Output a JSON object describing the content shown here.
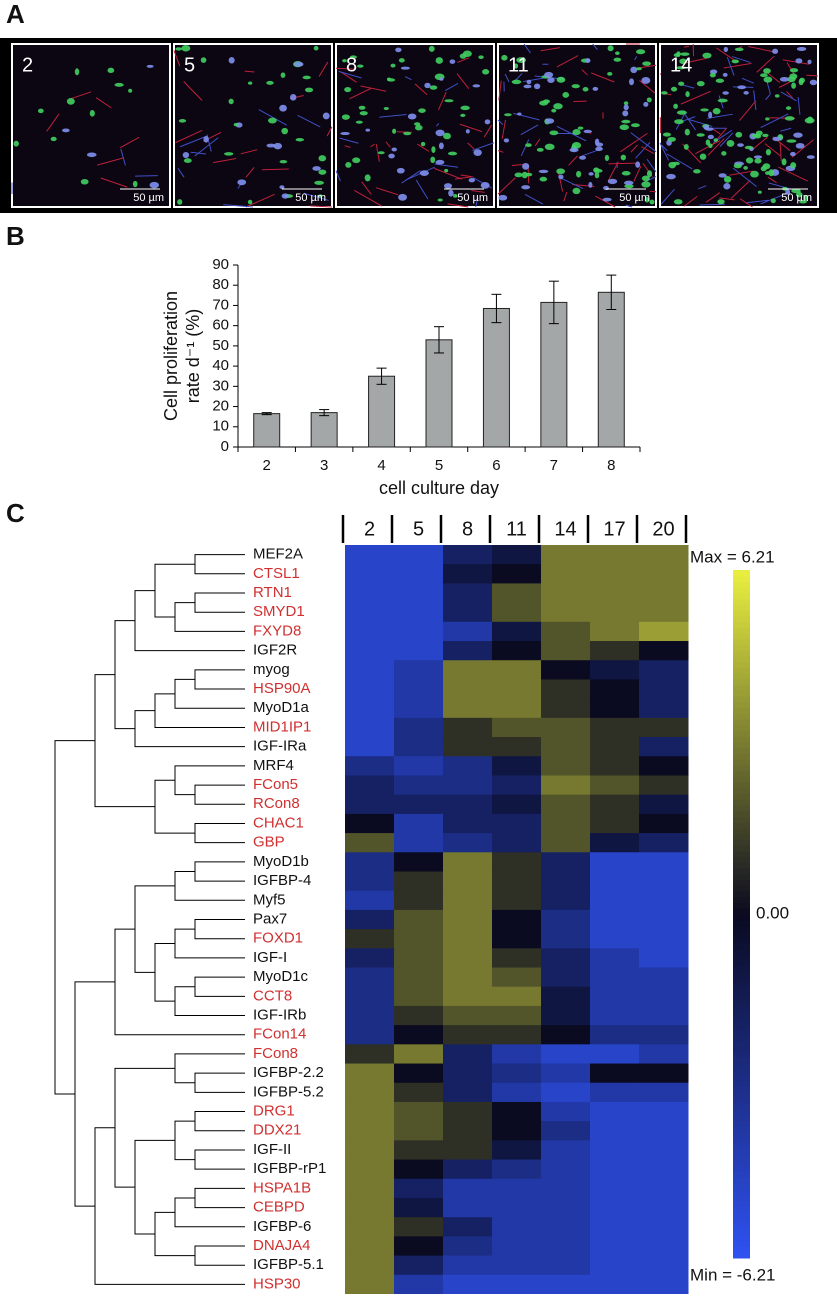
{
  "panels": [
    "A",
    "B",
    "C"
  ],
  "panel_a": {
    "days": [
      "2",
      "5",
      "8",
      "11",
      "14"
    ],
    "scale_bar": "50 µm"
  },
  "chart_data": [
    {
      "type": "bar",
      "categories": [
        "2",
        "3",
        "4",
        "5",
        "6",
        "7",
        "8"
      ],
      "values": [
        16.5,
        17,
        35,
        53,
        68.5,
        71.5,
        76.5
      ],
      "errors": [
        0.5,
        1.5,
        4,
        6.5,
        7,
        10.5,
        8.5
      ],
      "ylabel": [
        "Cell proliferation",
        "rate d⁻¹ (%)"
      ],
      "xlabel": "cell culture day",
      "ylim": [
        0,
        90
      ],
      "yticks": [
        0,
        10,
        20,
        30,
        40,
        50,
        60,
        70,
        80,
        90
      ],
      "color": "#a3a7a7"
    },
    {
      "type": "heatmap",
      "columns": [
        "2",
        "5",
        "8",
        "11",
        "14",
        "17",
        "20"
      ],
      "rows": [
        "MEF2A",
        "CTSL1",
        "RTN1",
        "SMYD1",
        "FXYD8",
        "IGF2R",
        "myog",
        "HSP90A",
        "MyoD1a",
        "MID1IP1",
        "IGF-IRa",
        "MRF4",
        "FCon5",
        "RCon8",
        "CHAC1",
        "GBP",
        "MyoD1b",
        "IGFBP-4",
        "Myf5",
        "Pax7",
        "FOXD1",
        "IGF-I",
        "MyoD1c",
        "CCT8",
        "IGF-IRb",
        "FCon14",
        "FCon8",
        "IGFBP-2.2",
        "IGFBP-5.2",
        "DRG1",
        "DDX21",
        "IGF-II",
        "IGFBP-rP1",
        "HSPA1B",
        "CEBPD",
        "IGFBP-6",
        "DNAJA4",
        "IGFBP-5.1",
        "HSP30"
      ],
      "row_colors": [
        "#111",
        "#d03030",
        "#d03030",
        "#d03030",
        "#d03030",
        "#111",
        "#111",
        "#d03030",
        "#111",
        "#d03030",
        "#111",
        "#111",
        "#d03030",
        "#d03030",
        "#d03030",
        "#d03030",
        "#111",
        "#111",
        "#111",
        "#111",
        "#d03030",
        "#111",
        "#111",
        "#d03030",
        "#111",
        "#d03030",
        "#d03030",
        "#111",
        "#111",
        "#d03030",
        "#d03030",
        "#111",
        "#111",
        "#d03030",
        "#d03030",
        "#111",
        "#d03030",
        "#111",
        "#d03030"
      ],
      "values": [
        [
          -5,
          -5,
          -2,
          -1,
          3,
          3,
          3
        ],
        [
          -5,
          -5,
          -1,
          0,
          3,
          3,
          3
        ],
        [
          -5,
          -5,
          -2,
          2,
          3,
          3,
          3
        ],
        [
          -5,
          -5,
          -2,
          2,
          3,
          3,
          3
        ],
        [
          -5,
          -5,
          -4,
          -1,
          2,
          3,
          4
        ],
        [
          -5,
          -5,
          -2,
          0,
          2,
          1,
          0
        ],
        [
          -5,
          -4,
          3,
          3,
          0,
          -1,
          -2
        ],
        [
          -5,
          -4,
          3,
          3,
          1,
          0,
          -2
        ],
        [
          -5,
          -4,
          3,
          3,
          1,
          0,
          -2
        ],
        [
          -5,
          -3,
          1,
          2,
          2,
          1,
          1
        ],
        [
          -5,
          -3,
          1,
          1,
          2,
          1,
          -2
        ],
        [
          -3,
          -4,
          -3,
          -1,
          2,
          1,
          0
        ],
        [
          -2,
          -3,
          -3,
          -2,
          3,
          2,
          1
        ],
        [
          -2,
          -2,
          -2,
          -1,
          2,
          1,
          -1
        ],
        [
          0,
          -4,
          -2,
          -2,
          2,
          1,
          0
        ],
        [
          2,
          -4,
          -3,
          -2,
          2,
          -1,
          -2
        ],
        [
          -3,
          0,
          3,
          1,
          -2,
          -5,
          -5
        ],
        [
          -3,
          1,
          3,
          1,
          -2,
          -5,
          -5
        ],
        [
          -4,
          1,
          3,
          1,
          -2,
          -5,
          -5
        ],
        [
          -2,
          2,
          3,
          0,
          -3,
          -5,
          -5
        ],
        [
          1,
          2,
          3,
          0,
          -3,
          -5,
          -5
        ],
        [
          -2,
          2,
          3,
          1,
          -2,
          -4,
          -5
        ],
        [
          -3,
          2,
          3,
          2,
          -2,
          -4,
          -4
        ],
        [
          -3,
          2,
          3,
          3,
          -1,
          -4,
          -4
        ],
        [
          -3,
          1,
          2,
          2,
          -1,
          -4,
          -4
        ],
        [
          -3,
          0,
          1,
          1,
          0,
          -3,
          -3
        ],
        [
          1,
          3,
          -2,
          -4,
          -5,
          -5,
          -4
        ],
        [
          3,
          0,
          -2,
          -3,
          -4,
          0,
          0
        ],
        [
          3,
          1,
          -2,
          -4,
          -5,
          -4,
          -4
        ],
        [
          3,
          2,
          1,
          0,
          -4,
          -5,
          -5
        ],
        [
          3,
          2,
          1,
          0,
          -3,
          -5,
          -5
        ],
        [
          3,
          1,
          1,
          -1,
          -4,
          -5,
          -5
        ],
        [
          3,
          0,
          -2,
          -3,
          -4,
          -5,
          -5
        ],
        [
          3,
          -2,
          -4,
          -4,
          -4,
          -5,
          -5
        ],
        [
          3,
          -1,
          -4,
          -4,
          -4,
          -5,
          -5
        ],
        [
          3,
          1,
          -2,
          -4,
          -4,
          -5,
          -5
        ],
        [
          3,
          0,
          -3,
          -4,
          -4,
          -5,
          -5
        ],
        [
          3,
          -2,
          -4,
          -4,
          -4,
          -5,
          -5
        ],
        [
          3,
          -4,
          -5,
          -5,
          -5,
          -5,
          -5
        ]
      ],
      "zlim": [
        -6.21,
        6.21
      ],
      "zticks": [
        {
          "value": 6.21,
          "label": "Max = 6.21"
        },
        {
          "value": 0,
          "label": "0.00"
        },
        {
          "value": -6.21,
          "label": "Min = -6.21"
        }
      ],
      "colors": [
        "#2f52f2",
        "#0a0a20",
        "#eaf040"
      ]
    }
  ]
}
